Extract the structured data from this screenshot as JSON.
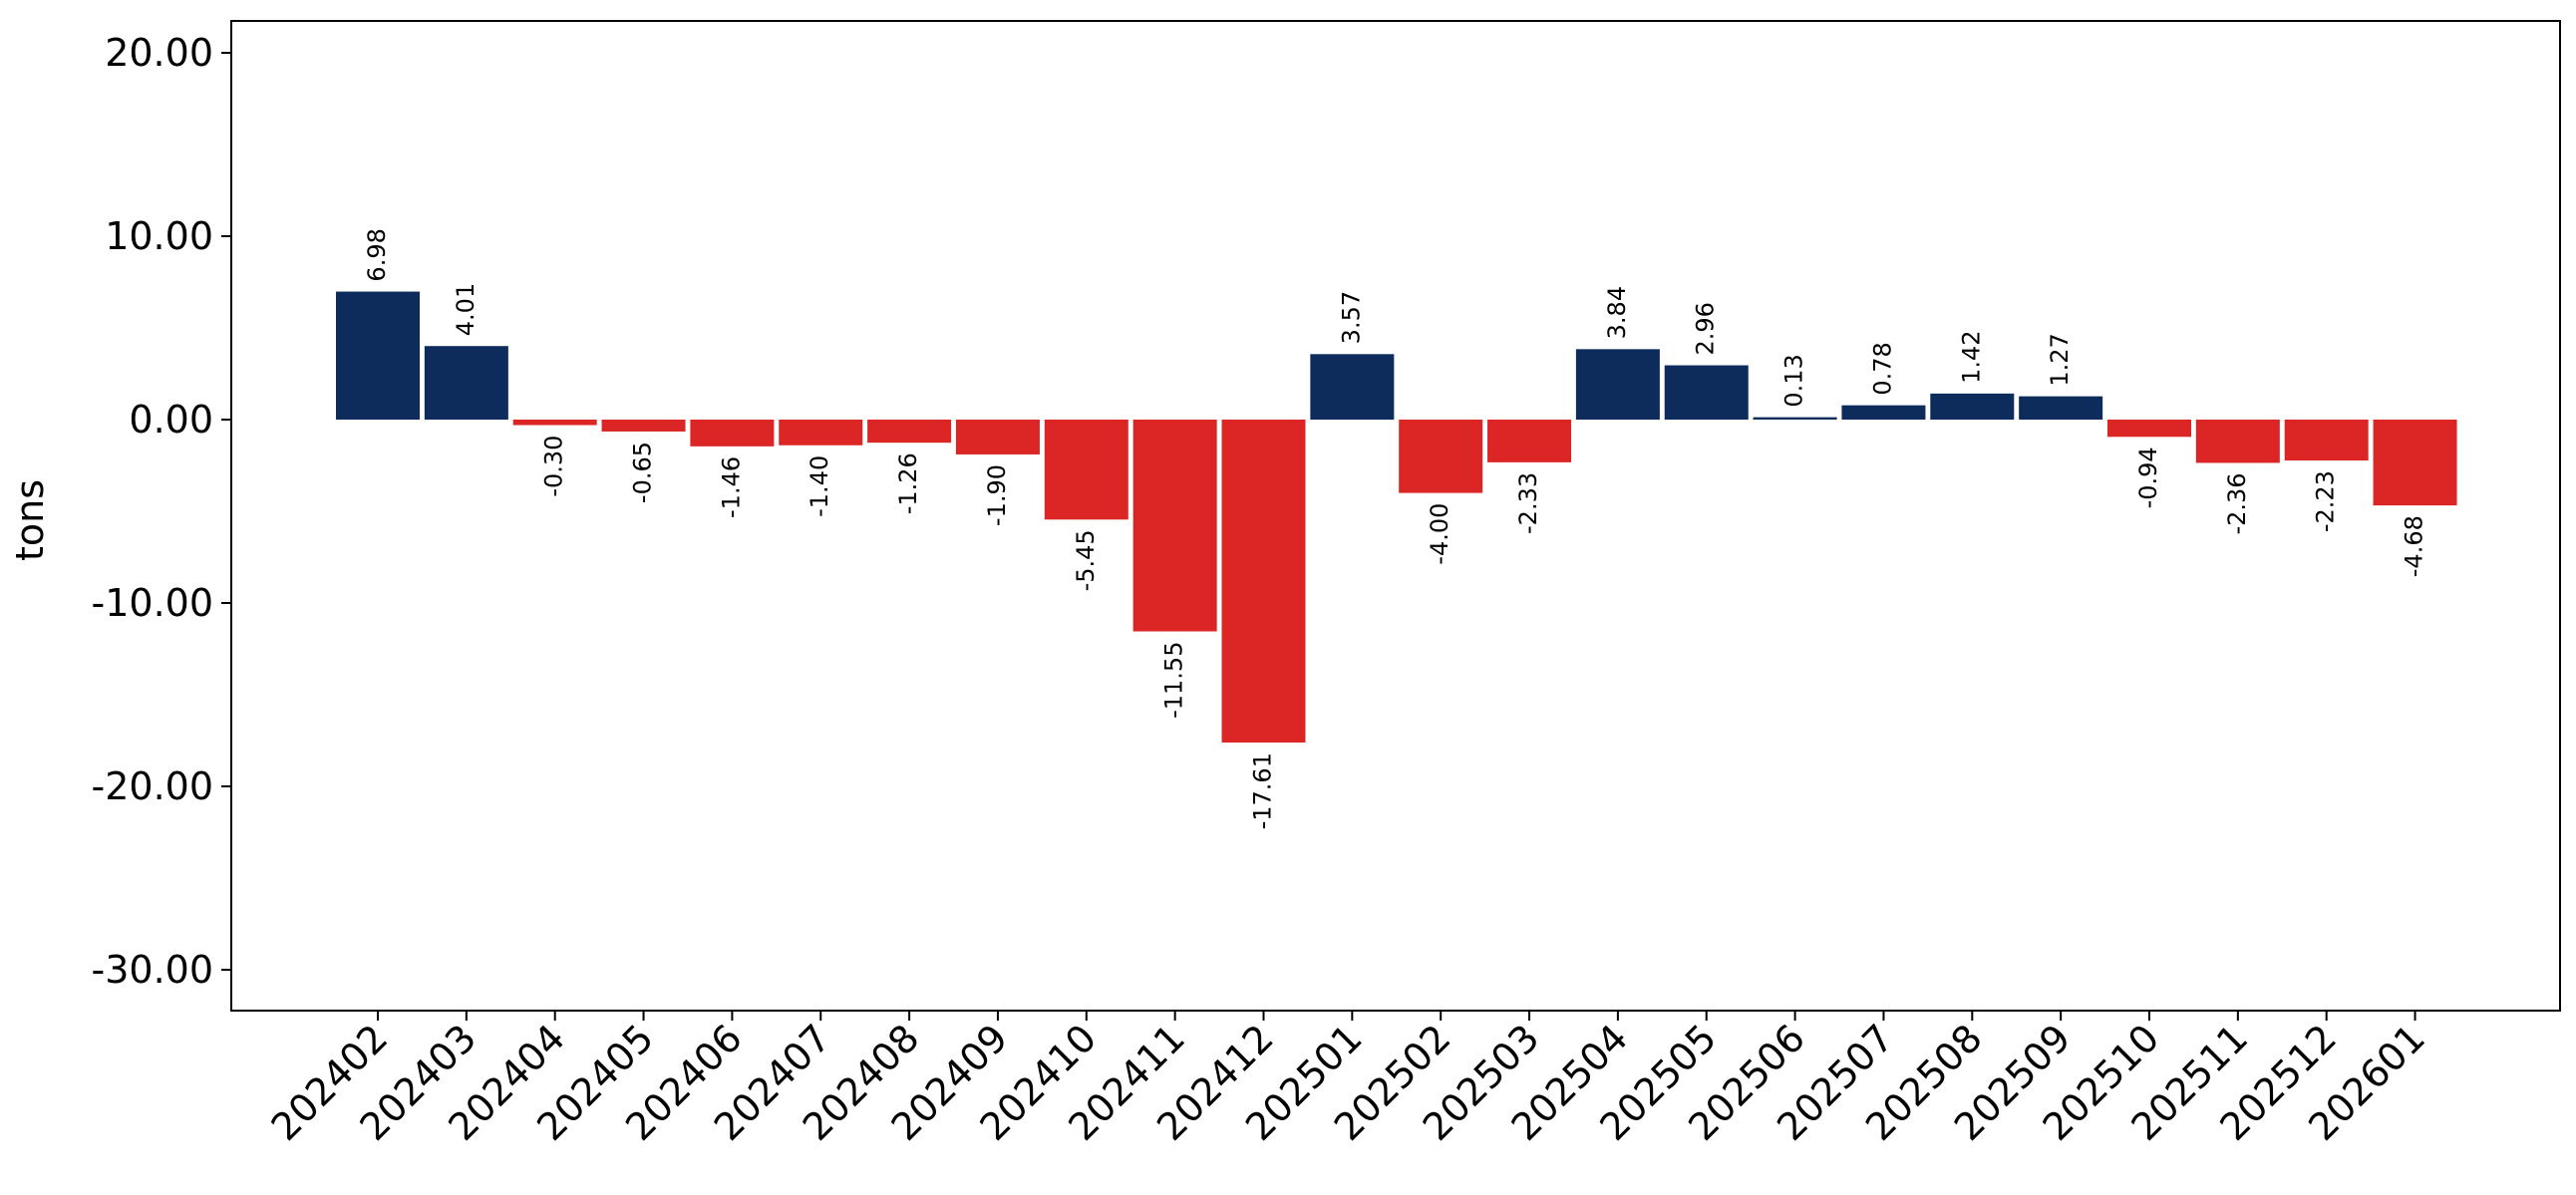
{
  "chart_data": {
    "type": "bar",
    "title": "",
    "xlabel": "",
    "ylabel": "tons",
    "ylim": [
      -32.3,
      21.9
    ],
    "yticks": [
      20,
      10,
      0,
      -10,
      -20,
      -30
    ],
    "ytick_labels": [
      "20.00",
      "10.00",
      "0.00",
      "-10.00",
      "-20.00",
      "-30.00"
    ],
    "grid": false,
    "legend": "none",
    "positive_color": "#0d2c5c",
    "negative_color": "#dc2626",
    "categories": [
      "202402",
      "202403",
      "202404",
      "202405",
      "202406",
      "202407",
      "202408",
      "202409",
      "202410",
      "202411",
      "202412",
      "202501",
      "202502",
      "202503",
      "202504",
      "202505",
      "202506",
      "202507",
      "202508",
      "202509",
      "202510",
      "202511",
      "202512",
      "202601"
    ],
    "values": [
      6.98,
      4.01,
      -0.3,
      -0.65,
      -1.46,
      -1.4,
      -1.26,
      -1.9,
      -5.45,
      -11.55,
      -17.61,
      3.57,
      -4.0,
      -2.33,
      3.84,
      2.96,
      0.13,
      0.78,
      1.42,
      1.27,
      -0.94,
      -2.36,
      -2.23,
      -4.68
    ],
    "data_labels": [
      "6.98",
      "4.01",
      "-0.30",
      "-0.65",
      "-1.46",
      "-1.40",
      "-1.26",
      "-1.90",
      "-5.45",
      "-11.55",
      "-17.61",
      "3.57",
      "-4.00",
      "-2.33",
      "3.84",
      "2.96",
      "0.13",
      "0.78",
      "1.42",
      "1.27",
      "-0.94",
      "-2.36",
      "-2.23",
      "-4.68"
    ]
  }
}
